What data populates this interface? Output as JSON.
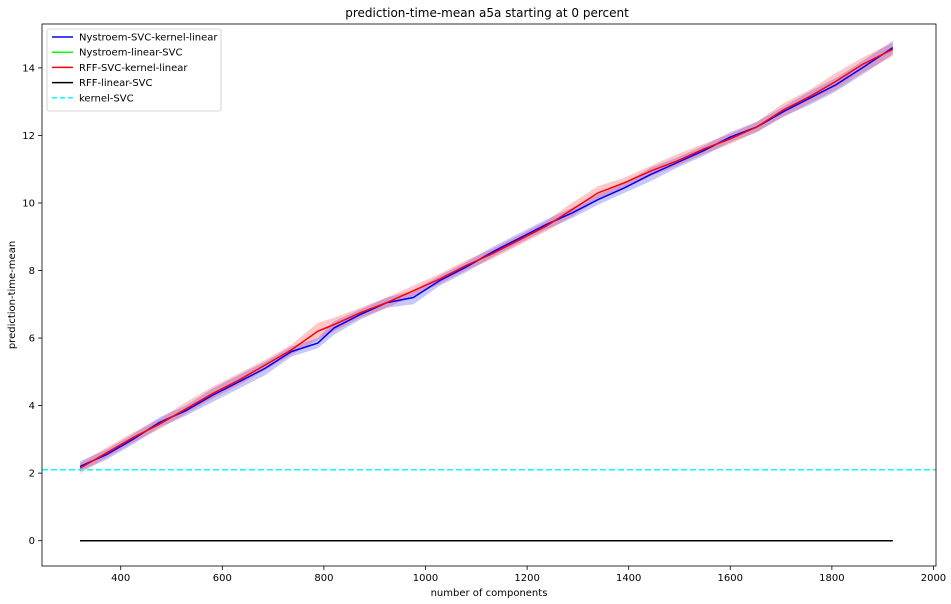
{
  "chart_data": {
    "type": "line",
    "title": "prediction-time-mean a5a starting at 0 percent",
    "xlabel": "number of components",
    "ylabel": "prediction-time-mean",
    "xlim": [
      245,
      2005
    ],
    "ylim": [
      -0.75,
      15.3
    ],
    "xticks": [
      400,
      600,
      800,
      1000,
      1200,
      1400,
      1600,
      1800,
      2000
    ],
    "yticks": [
      0,
      2,
      4,
      6,
      8,
      10,
      12,
      14
    ],
    "grid": false,
    "legend_position": "top-left",
    "x": [
      320,
      372,
      424,
      476,
      528,
      580,
      632,
      684,
      736,
      788,
      820,
      872,
      924,
      976,
      1028,
      1080,
      1132,
      1184,
      1236,
      1288,
      1340,
      1392,
      1444,
      1496,
      1548,
      1600,
      1652,
      1704,
      1756,
      1808,
      1860,
      1920
    ],
    "series": [
      {
        "name": "Nystroem-SVC-kernel-linear",
        "color": "#0000ff",
        "style": "solid",
        "y": [
          2.2,
          2.55,
          3.0,
          3.5,
          3.85,
          4.3,
          4.7,
          5.1,
          5.6,
          5.85,
          6.3,
          6.7,
          7.05,
          7.2,
          7.7,
          8.1,
          8.55,
          8.95,
          9.35,
          9.7,
          10.1,
          10.45,
          10.85,
          11.2,
          11.55,
          11.95,
          12.25,
          12.7,
          13.1,
          13.5,
          14.0,
          14.6
        ],
        "y_lower": [
          2.05,
          2.4,
          2.85,
          3.35,
          3.7,
          4.1,
          4.5,
          4.9,
          5.45,
          5.7,
          6.1,
          6.55,
          6.9,
          7.0,
          7.55,
          7.95,
          8.4,
          8.8,
          9.2,
          9.55,
          9.95,
          10.3,
          10.65,
          11.05,
          11.4,
          11.8,
          12.1,
          12.55,
          12.9,
          13.3,
          13.8,
          14.4
        ],
        "y_upper": [
          2.35,
          2.7,
          3.15,
          3.65,
          4.0,
          4.5,
          4.9,
          5.3,
          5.75,
          6.0,
          6.5,
          6.85,
          7.2,
          7.4,
          7.85,
          8.25,
          8.7,
          9.1,
          9.5,
          9.85,
          10.25,
          10.6,
          11.05,
          11.35,
          11.7,
          12.1,
          12.4,
          12.85,
          13.3,
          13.7,
          14.2,
          14.8
        ]
      },
      {
        "name": "Nystroem-linear-SVC",
        "color": "#00ff00",
        "style": "solid",
        "y": [
          0.0,
          0.0,
          0.0,
          0.0,
          0.0,
          0.0,
          0.0,
          0.0,
          0.0,
          0.0,
          0.0,
          0.0,
          0.0,
          0.0,
          0.0,
          0.0,
          0.0,
          0.0,
          0.0,
          0.0,
          0.0,
          0.0,
          0.0,
          0.0,
          0.0,
          0.0,
          0.0,
          0.0,
          0.0,
          0.0,
          0.0,
          0.0
        ]
      },
      {
        "name": "RFF-SVC-kernel-linear",
        "color": "#ff0000",
        "style": "solid",
        "y": [
          2.15,
          2.6,
          3.05,
          3.45,
          3.9,
          4.35,
          4.75,
          5.2,
          5.65,
          6.2,
          6.4,
          6.75,
          7.05,
          7.4,
          7.75,
          8.15,
          8.5,
          8.9,
          9.3,
          9.8,
          10.3,
          10.6,
          10.95,
          11.25,
          11.6,
          11.9,
          12.25,
          12.75,
          13.15,
          13.6,
          14.1,
          14.55
        ],
        "y_lower": [
          2.0,
          2.45,
          2.9,
          3.3,
          3.75,
          4.2,
          4.6,
          5.05,
          5.5,
          5.95,
          6.2,
          6.6,
          6.9,
          7.25,
          7.6,
          8.0,
          8.35,
          8.75,
          9.15,
          9.6,
          10.1,
          10.45,
          10.8,
          11.1,
          11.45,
          11.75,
          12.1,
          12.55,
          12.95,
          13.35,
          13.85,
          14.35
        ],
        "y_upper": [
          2.3,
          2.75,
          3.2,
          3.6,
          4.1,
          4.55,
          4.95,
          5.35,
          5.8,
          6.45,
          6.6,
          6.9,
          7.2,
          7.55,
          7.9,
          8.3,
          8.65,
          9.05,
          9.45,
          10.0,
          10.5,
          10.75,
          11.1,
          11.45,
          11.75,
          12.05,
          12.4,
          12.95,
          13.35,
          13.85,
          14.3,
          14.75
        ]
      },
      {
        "name": "RFF-linear-SVC",
        "color": "#000000",
        "style": "solid",
        "y": [
          0.0,
          0.0,
          0.0,
          0.0,
          0.0,
          0.0,
          0.0,
          0.0,
          0.0,
          0.0,
          0.0,
          0.0,
          0.0,
          0.0,
          0.0,
          0.0,
          0.0,
          0.0,
          0.0,
          0.0,
          0.0,
          0.0,
          0.0,
          0.0,
          0.0,
          0.0,
          0.0,
          0.0,
          0.0,
          0.0,
          0.0,
          0.0
        ]
      },
      {
        "name": "kernel-SVC",
        "color": "#00ffff",
        "style": "dashed",
        "y_const": 2.1
      }
    ]
  }
}
